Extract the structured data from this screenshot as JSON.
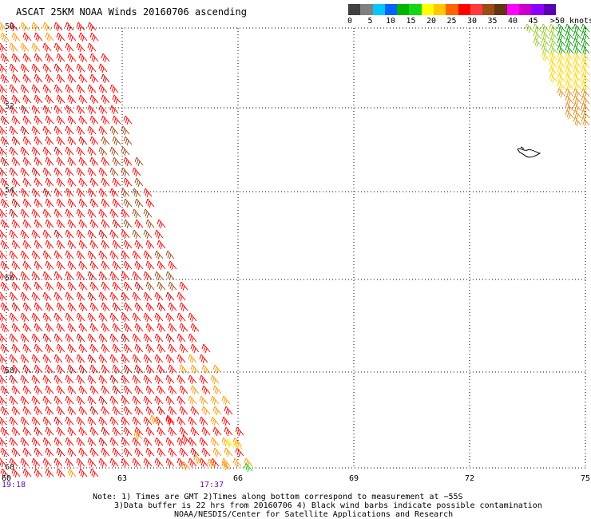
{
  "header": {
    "title": "ASCAT 25KM NOAA Winds 20160706 ascending"
  },
  "colorbar": {
    "colors": [
      "#404040",
      "#808080",
      "#00c8ff",
      "#0064ff",
      "#00b400",
      "#14d714",
      "#ffff00",
      "#ffc800",
      "#ff6400",
      "#ff0000",
      "#ff3c3c",
      "#9b4b14",
      "#643214",
      "#ff00ff",
      "#c800c8",
      "#8c00ff",
      "#5a00b4"
    ],
    "labels": [
      "0",
      "5",
      "10",
      "15",
      "20",
      "25",
      "30",
      "35",
      "40",
      "45",
      ">50 knots"
    ]
  },
  "axes": {
    "lat_labels": [
      "50",
      "52",
      "54",
      "56",
      "58",
      "60"
    ],
    "lon_labels": [
      "60",
      "63",
      "66",
      "69",
      "72",
      "75"
    ]
  },
  "times": {
    "left": "19:18",
    "right": "17:37"
  },
  "notes": {
    "line1": "Note: 1) Times are GMT 2)Times along bottom correspond to measurement at −55S",
    "line2": "3)Data buffer is 22 hrs from 20160706 4) Black wind barbs indicate possible contamination",
    "line3": "NOAA/NESDIS/Center for Satellite Applications and Research"
  }
}
